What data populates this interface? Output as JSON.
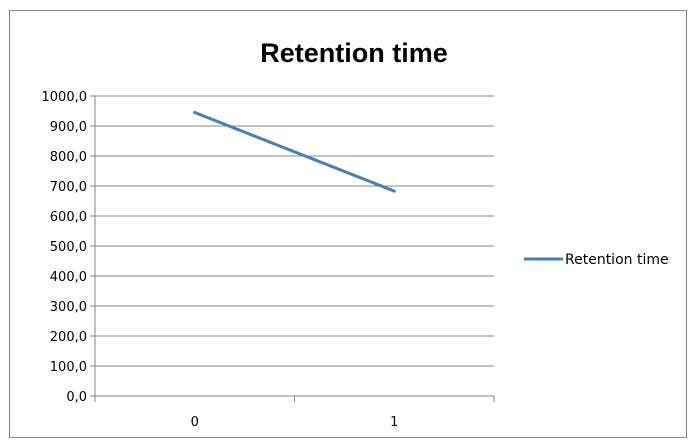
{
  "chart_data": {
    "type": "line",
    "title": "Retention time",
    "xlabel": "",
    "ylabel": "",
    "categories": [
      "0",
      "1"
    ],
    "series": [
      {
        "name": "Retention time",
        "values": [
          945,
          683
        ]
      }
    ],
    "ylim": [
      0,
      1000
    ],
    "yticks": [
      "0,0",
      "100,0",
      "200,0",
      "300,0",
      "400,0",
      "500,0",
      "600,0",
      "700,0",
      "800,0",
      "900,0",
      "1000,0"
    ],
    "grid": true,
    "legend": "right",
    "series_color": "#4a7ebb",
    "grid_color": "#878787"
  }
}
